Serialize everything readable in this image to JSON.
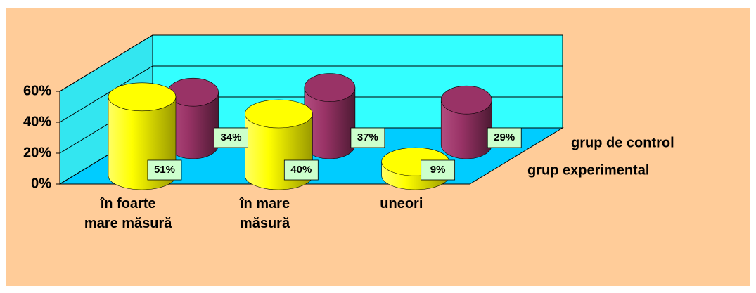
{
  "chart_data": {
    "type": "bar3d",
    "categories": [
      "în foarte\nmare măsură",
      "în mare\nmăsură",
      "uneori"
    ],
    "series": [
      {
        "name": "grup experimental",
        "color": "#ffff00",
        "values": [
          51,
          40,
          9
        ],
        "value_labels": [
          "51%",
          "40%",
          "9%"
        ]
      },
      {
        "name": "grup de control",
        "color": "#993366",
        "values": [
          34,
          37,
          29
        ],
        "value_labels": [
          "34%",
          "37%",
          "29%"
        ]
      }
    ],
    "ylim": [
      0,
      60
    ],
    "yticks": [
      {
        "value": 0,
        "label": "0%"
      },
      {
        "value": 20,
        "label": "20%"
      },
      {
        "value": 40,
        "label": "40%"
      },
      {
        "value": 60,
        "label": "60%"
      }
    ],
    "grid": true
  }
}
